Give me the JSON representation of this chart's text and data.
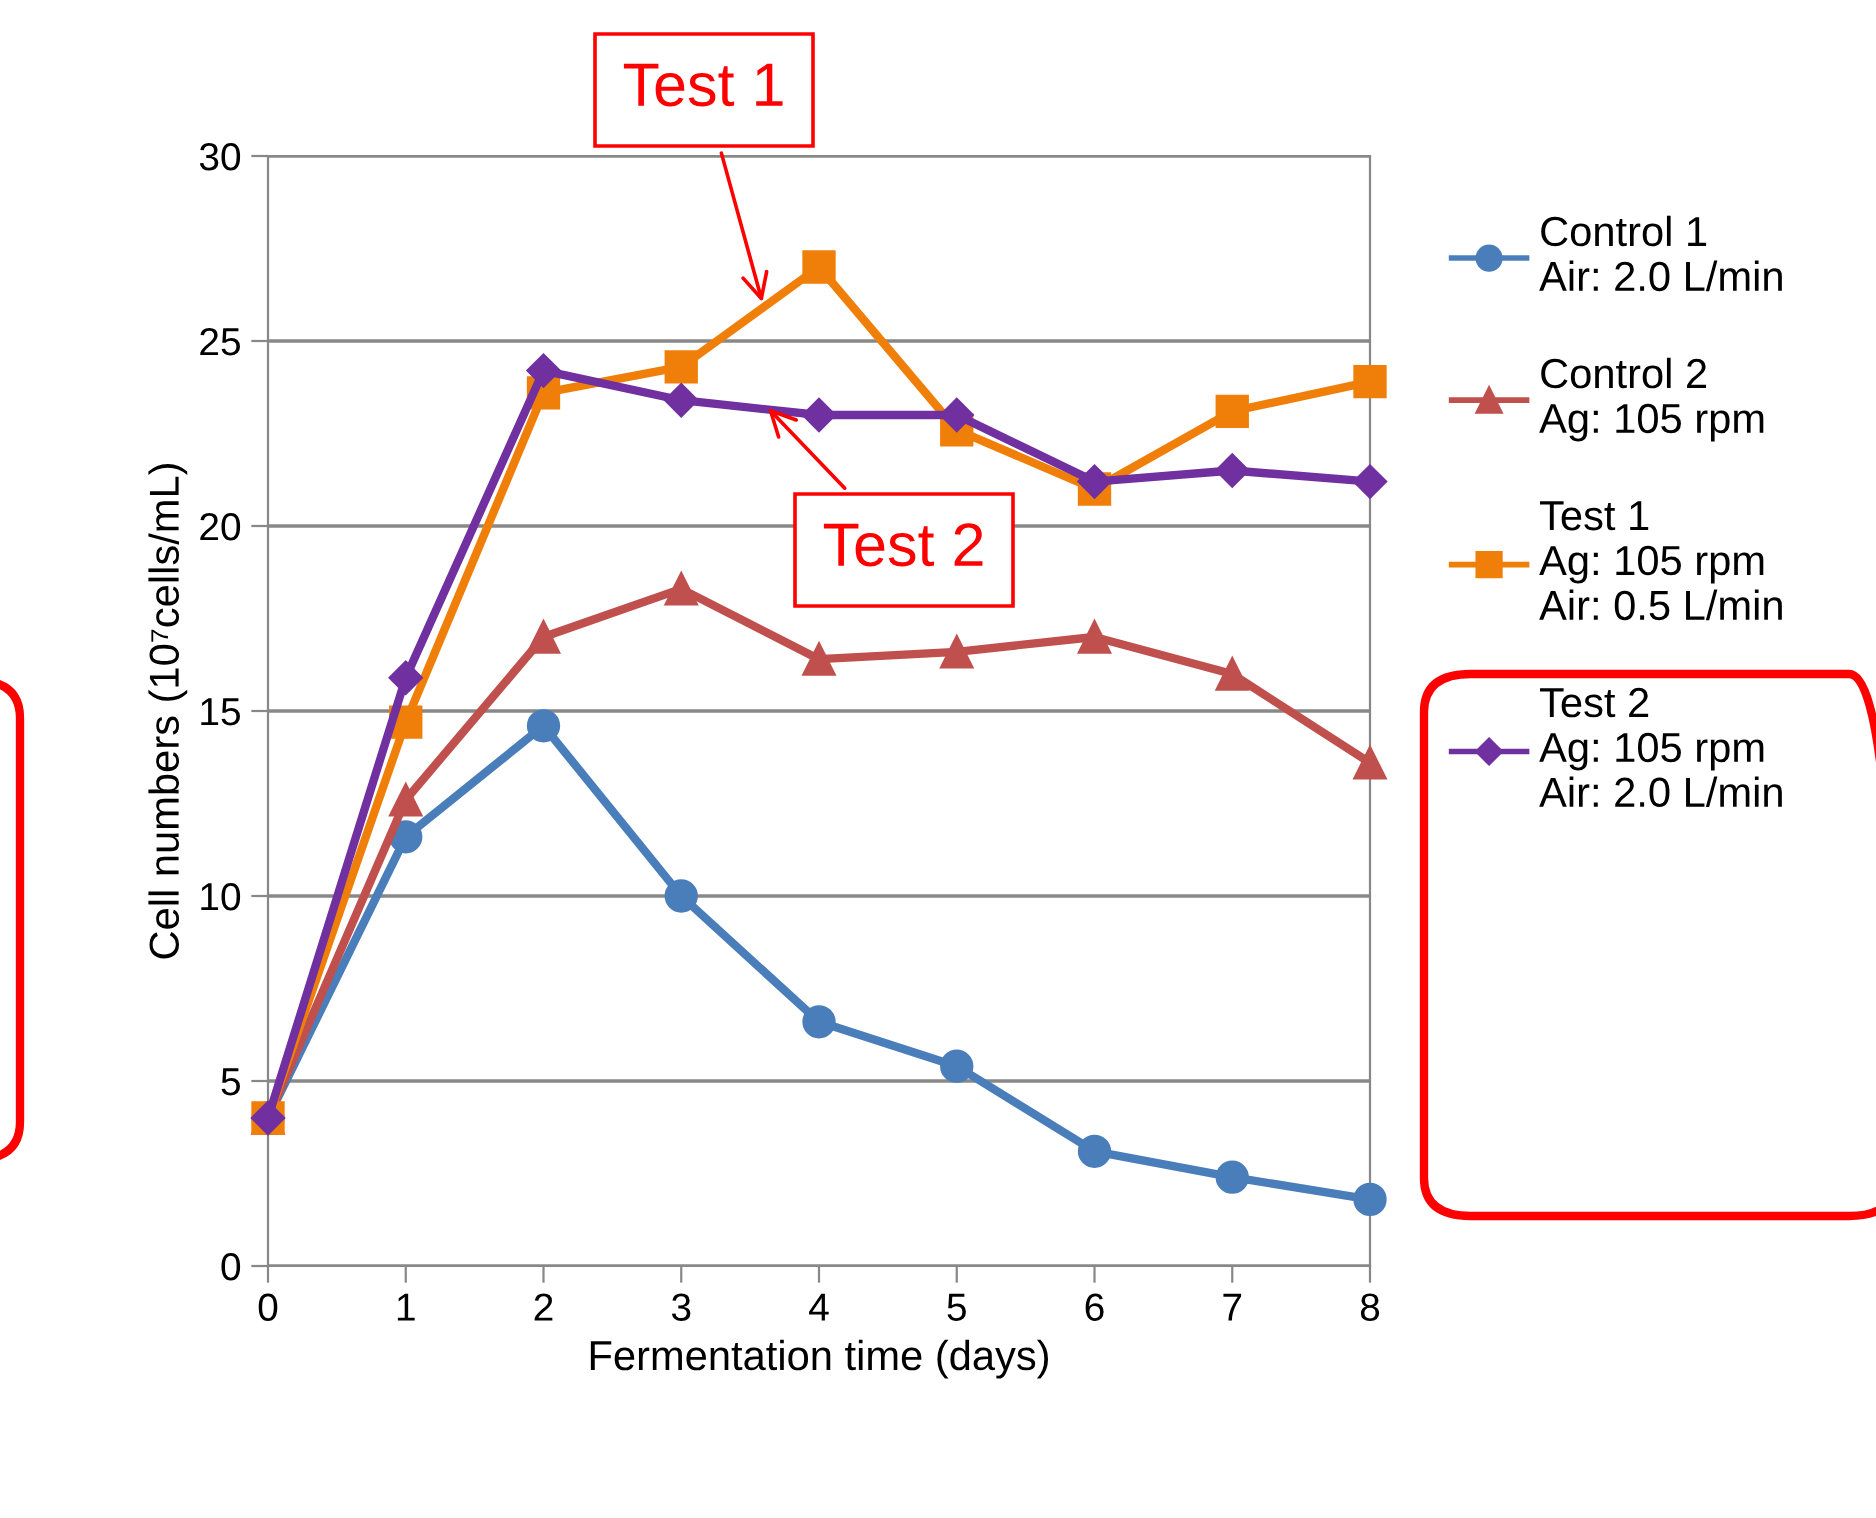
{
  "chart_data": {
    "type": "line",
    "xlabel": "Fermentation time (days)",
    "ylabel": "Cell numbers (10⁷cells/mL)",
    "x": [
      0,
      1,
      2,
      3,
      4,
      5,
      6,
      7,
      8
    ],
    "series": [
      {
        "name": "Control 1\nAir: 2.0 L/min",
        "color": "#4a7ebb",
        "marker": "circle",
        "values": [
          4.0,
          11.6,
          14.6,
          10.0,
          6.6,
          5.4,
          3.1,
          2.4,
          1.8
        ]
      },
      {
        "name": "Control 2\nAg: 105 rpm",
        "color": "#c0504d",
        "marker": "triangle",
        "values": [
          4.0,
          12.6,
          17.0,
          18.3,
          16.4,
          16.6,
          17.0,
          16.0,
          13.6
        ]
      },
      {
        "name": "Test 1\nAg: 105 rpm\nAir: 0.5 L/min",
        "color": "#f07f09",
        "marker": "square",
        "values": [
          4.0,
          14.7,
          23.6,
          24.3,
          27.0,
          22.6,
          21.0,
          23.1,
          23.9
        ]
      },
      {
        "name": "Test 2\nAg: 105 rpm\nAir: 2.0 L/min",
        "color": "#7030a0",
        "marker": "diamond",
        "values": [
          4.0,
          15.9,
          24.2,
          23.4,
          23.0,
          23.0,
          21.2,
          21.5,
          21.2
        ]
      }
    ],
    "annotations": [
      {
        "text": "Test 1",
        "x": 3.6,
        "y": 25.9
      },
      {
        "text": "Test 2",
        "x": 3.6,
        "y": 23.3
      }
    ],
    "xlim": [
      0,
      8
    ],
    "xticks": [
      0,
      1,
      2,
      3,
      4,
      5,
      6,
      7,
      8
    ],
    "ylim": [
      0,
      30
    ],
    "yticks": [
      0,
      5,
      10,
      15,
      20,
      25,
      30
    ],
    "grid": "y",
    "legend": "right"
  }
}
